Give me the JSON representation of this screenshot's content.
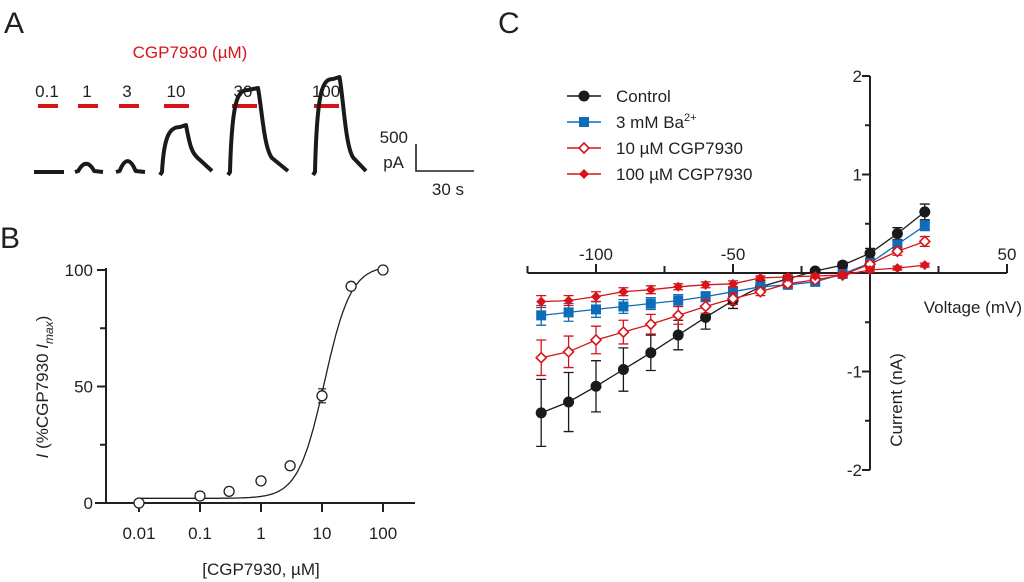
{
  "panels": {
    "a": {
      "letter": "A",
      "drug_title": "CGP7930 (µM)",
      "concentrations": [
        "0.1",
        "1",
        "3",
        "10",
        "30",
        "100"
      ],
      "relative_peak": [
        0.0,
        0.12,
        0.16,
        0.45,
        0.82,
        0.93
      ],
      "scale_bar": {
        "current_value": "500",
        "current_unit": "pA",
        "time_label": "30 s"
      },
      "colors": {
        "drug_bar": "#d7141a",
        "trace": "#1a1a1a"
      }
    },
    "b": {
      "letter": "B"
    },
    "c": {
      "letter": "C"
    }
  },
  "chart_data": [
    {
      "id": "B",
      "type": "scatter",
      "title": "",
      "xlabel": "[CGP7930, µM]",
      "ylabel_italic": "I",
      "ylabel_main": " (%CGP7930 ",
      "ylabel_sub_italic": "I",
      "ylabel_sub": "max",
      "ylabel_close": ")",
      "xscale": "log",
      "xlim": [
        0.005,
        200
      ],
      "ylim": [
        0,
        100
      ],
      "xticks": [
        0.01,
        0.1,
        1,
        10,
        100
      ],
      "xtick_labels": [
        "0.01",
        "0.1",
        "1",
        "10",
        "100"
      ],
      "yticks": [
        0,
        50,
        100
      ],
      "ytick_labels": [
        "0",
        "50",
        "100"
      ],
      "yminor": [
        25,
        75
      ],
      "grid": false,
      "points": {
        "x": [
          0.01,
          0.1,
          0.3,
          1,
          3,
          10,
          30,
          100
        ],
        "y": [
          0,
          3,
          5,
          9.5,
          16,
          46,
          93,
          100
        ],
        "err": [
          0,
          0,
          0,
          0,
          0,
          3,
          0,
          0
        ]
      },
      "fit": {
        "model": "Hill",
        "bottom": 2,
        "top": 102,
        "ec50": 11,
        "hill": 2.0
      }
    },
    {
      "id": "C",
      "type": "line",
      "xlabel": "Voltage (mV)",
      "ylabel": "Current (nA)",
      "xlim": [
        -125,
        50
      ],
      "ylim": [
        -2,
        2
      ],
      "xticks": [
        -100,
        -50,
        50
      ],
      "xtick_labels": [
        "-100",
        "-50",
        "50"
      ],
      "xminor": [
        -125,
        -75,
        -25,
        25
      ],
      "yticks": [
        -2,
        -1,
        1,
        2
      ],
      "ytick_labels": [
        "-2",
        "-1",
        "1",
        "2"
      ],
      "yminor": [
        -1.5,
        -0.5,
        0.5,
        1.5
      ],
      "grid": false,
      "legend_position": "top-left",
      "x": [
        -120,
        -110,
        -100,
        -90,
        -80,
        -70,
        -60,
        -50,
        -40,
        -30,
        -20,
        -10,
        0,
        10,
        20
      ],
      "series": [
        {
          "name": "Control",
          "name_sup": "",
          "marker": "circle-filled",
          "color": "#1a1a1a",
          "values": [
            -1.42,
            -1.31,
            -1.15,
            -0.98,
            -0.81,
            -0.63,
            -0.45,
            -0.28,
            -0.14,
            -0.06,
            0.02,
            0.08,
            0.2,
            0.4,
            0.62
          ],
          "errors": [
            0.34,
            0.3,
            0.26,
            0.22,
            0.18,
            0.15,
            0.12,
            0.08,
            0.06,
            0.03,
            0.02,
            0.03,
            0.05,
            0.06,
            0.08
          ]
        },
        {
          "name": "3 mM Ba",
          "name_sup": "2+",
          "marker": "square-filled",
          "color": "#0e6cb8",
          "values": [
            -0.43,
            -0.4,
            -0.37,
            -0.34,
            -0.31,
            -0.28,
            -0.24,
            -0.19,
            -0.14,
            -0.12,
            -0.09,
            -0.01,
            0.1,
            0.29,
            0.48
          ],
          "errors": [
            0.1,
            0.09,
            0.08,
            0.07,
            0.06,
            0.06,
            0.05,
            0.05,
            0.04,
            0.03,
            0.02,
            0.02,
            0.03,
            0.04,
            0.05
          ]
        },
        {
          "name": "10 µM CGP7930",
          "name_sup": "",
          "marker": "diamond-open",
          "color": "#d7141a",
          "values": [
            -0.86,
            -0.8,
            -0.68,
            -0.6,
            -0.52,
            -0.43,
            -0.34,
            -0.26,
            -0.19,
            -0.11,
            -0.07,
            -0.02,
            0.09,
            0.22,
            0.32
          ],
          "errors": [
            0.18,
            0.16,
            0.14,
            0.12,
            0.1,
            0.09,
            0.07,
            0.06,
            0.04,
            0.03,
            0.02,
            0.02,
            0.03,
            0.04,
            0.05
          ]
        },
        {
          "name": "100 µM CGP7930",
          "name_sup": "",
          "marker": "diamond-filled",
          "color": "#d7141a",
          "values": [
            -0.29,
            -0.28,
            -0.24,
            -0.19,
            -0.17,
            -0.14,
            -0.12,
            -0.11,
            -0.05,
            -0.04,
            -0.03,
            -0.02,
            0.03,
            0.05,
            0.08
          ],
          "errors": [
            0.06,
            0.05,
            0.05,
            0.04,
            0.04,
            0.03,
            0.03,
            0.03,
            0.02,
            0.02,
            0.02,
            0.02,
            0.02,
            0.02,
            0.02
          ]
        }
      ]
    }
  ]
}
